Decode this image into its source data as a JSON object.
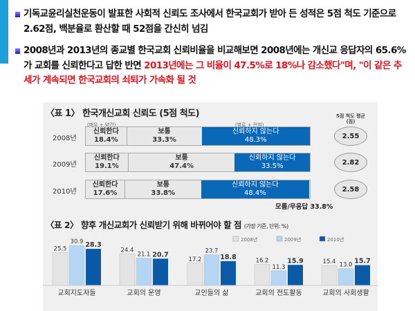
{
  "bullets": [
    {
      "text": "기독교윤리실천운동이 발표한 사회적 신뢰도 조사에서 한국교회가 받아 든 성적은 5점 척도 기준으로 2.62점, 백분율로 환산할 때 52점을 간신히 넘김"
    },
    {
      "text": "2008년과 2013년의 종교별 한국교회 신뢰비율을 비교해보면 2008년에는 개신교 응답자의 65.6%가 교회를 신뢰한다고 답한 반면 ",
      "red": "2013년에는 그 비율이 47.5%로 18%나 감소했다\"며, \"이 같은 추세가 계속되면 한국교회의 쇠퇴가 가속화 될 것"
    }
  ],
  "table1": {
    "title": "〈표 1〉 한국개신교회 신뢰도 (5점 척도)",
    "note_left": "(매우 + 약간)",
    "note_right": "(별로 + 전혀)",
    "avg_header": "5점 척도 평균(점)",
    "rows": [
      {
        "year": "2008년",
        "trust_label": "신뢰한다",
        "trust": "18.4%",
        "neutral_label": "보통",
        "neutral": "33.3%",
        "distrust_label": "신뢰하지 않는다",
        "distrust": "48.3%",
        "avg": "2.55",
        "v": [
          18.4,
          33.3,
          48.3
        ]
      },
      {
        "year": "2009년",
        "trust_label": "신뢰한다",
        "trust": "19.1%",
        "neutral_label": "보통",
        "neutral": "47.4%",
        "distrust_label": "신뢰하지 않는다",
        "distrust": "33.5%",
        "avg": "2.82",
        "v": [
          19.1,
          47.4,
          33.5
        ]
      },
      {
        "year": "2010년",
        "trust_label": "신뢰한다",
        "trust": "17.6%",
        "neutral_label": "보통",
        "neutral": "33.8%",
        "distrust_label": "신뢰하지 않는다",
        "distrust": "48.4%",
        "avg": "2.58",
        "v": [
          17.6,
          33.8,
          48.4
        ]
      }
    ],
    "footnote": "모름/무응답 33.8%"
  },
  "chart_data": {
    "type": "bar",
    "title": "〈표 2〉 향후 개신교회가 신뢰받기 위해 바뀌어야 할 점",
    "subtitle": "(가장 기준, 단위: %)",
    "categories": [
      "교회지도자들",
      "교회의 운영",
      "교인들의 삶",
      "교회의 전도활동",
      "교회의 사회생활"
    ],
    "series": [
      {
        "name": "2008년",
        "color": "#e4e4e4",
        "values": [
          25.5,
          24.4,
          17.2,
          16.2,
          15.4
        ],
        "labels": [
          "25.5",
          "24.4",
          "17.2",
          "16.2",
          "15.4"
        ]
      },
      {
        "name": "2009년",
        "color": "#b4d6f2",
        "values": [
          30.9,
          21.1,
          23.7,
          11.3,
          13.0
        ],
        "labels": [
          "30.9",
          "21.1",
          "23.7",
          "11.3",
          "13.0"
        ]
      },
      {
        "name": "2010년",
        "color": "#0a5aa8",
        "values": [
          28.3,
          20.7,
          18.8,
          15.9,
          15.7
        ],
        "labels": [
          "28.3",
          "20.7",
          "18.8",
          "15.9",
          "15.7"
        ]
      }
    ],
    "legend": "top-right"
  }
}
